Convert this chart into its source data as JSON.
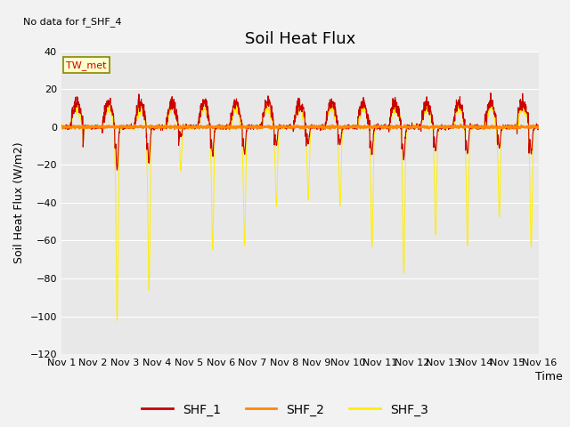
{
  "title": "Soil Heat Flux",
  "ylabel": "Soil Heat Flux (W/m2)",
  "xlabel": "Time",
  "ylim": [
    -120,
    40
  ],
  "no_data_text": "No data for f_SHF_4",
  "station_label": "TW_met",
  "x_tick_labels": [
    "Nov 1",
    "Nov 2",
    "Nov 3",
    "Nov 4",
    "Nov 5",
    "Nov 6",
    "Nov 7",
    "Nov 8",
    "Nov 9",
    "Nov 10",
    "Nov 11",
    "Nov 12",
    "Nov 13",
    "Nov 14",
    "Nov 15",
    "Nov 16"
  ],
  "legend_labels": [
    "SHF_1",
    "SHF_2",
    "SHF_3"
  ],
  "line_colors": [
    "#cc0000",
    "#ff8800",
    "#ffee00"
  ],
  "bg_color": "#e8e8e8",
  "fig_bg_color": "#f2f2f2",
  "title_fontsize": 13,
  "label_fontsize": 9,
  "tick_fontsize": 8,
  "n_days": 15,
  "pts_per_day": 144,
  "shf1_day_peak": 13,
  "shf1_noise": 2.0,
  "shf3_day_peak": 10,
  "shf3_noise": 1.5,
  "spike_depths": {
    "1": -103,
    "2": -87,
    "3": -22,
    "4": -65,
    "5": -63,
    "6": -42,
    "7": -38,
    "8": -42,
    "9": -64,
    "10": -78,
    "11": -57,
    "12": -63,
    "13": -48,
    "14": -64
  }
}
